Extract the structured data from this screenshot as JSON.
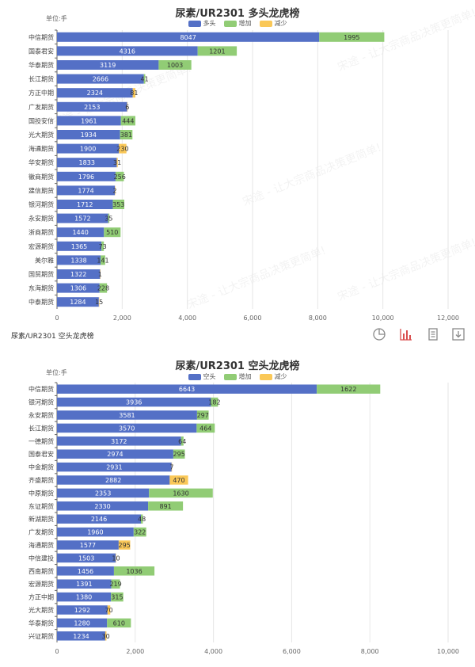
{
  "watermark_text": "宋途 - 让大宗商品决策更简单!",
  "toolbar": {
    "caption": "尿素/UR2301 空头龙虎榜",
    "icons": [
      "pie-chart-icon",
      "bar-chart-icon",
      "data-view-icon",
      "download-icon"
    ]
  },
  "colors": {
    "main": "#5470c6",
    "increase": "#91cc75",
    "decrease": "#fac858"
  },
  "chart_data": [
    {
      "type": "bar",
      "orientation": "horizontal",
      "stacked": true,
      "title": "尿素/UR2301 多头龙虎榜",
      "unit_label": "单位:手",
      "legend": [
        "多头",
        "增加",
        "减少"
      ],
      "xlim": [
        0,
        12000
      ],
      "xticks": [
        "0",
        "2,000",
        "4,000",
        "6,000",
        "8,000",
        "10,000",
        "12,000"
      ],
      "categories": [
        "中信期货",
        "国泰君安",
        "华泰期货",
        "长江期货",
        "方正中期",
        "广发期货",
        "国投安信",
        "光大期货",
        "海通期货",
        "华安期货",
        "徽商期货",
        "建信期货",
        "银河期货",
        "永安期货",
        "浙商期货",
        "宏源期货",
        "美尔雅",
        "国贸期货",
        "东海期货",
        "中泰期货"
      ],
      "series": [
        {
          "name": "多头",
          "values": [
            8047,
            4316,
            3119,
            2666,
            2324,
            2153,
            1961,
            1934,
            1900,
            1833,
            1796,
            1774,
            1712,
            1572,
            1440,
            1365,
            1338,
            1322,
            1306,
            1284
          ]
        },
        {
          "name": "增加",
          "values": [
            1995,
            1201,
            1003,
            41,
            0,
            0,
            444,
            381,
            0,
            0,
            256,
            0,
            353,
            35,
            510,
            73,
            141,
            0,
            228,
            0
          ]
        },
        {
          "name": "减少",
          "values": [
            0,
            0,
            0,
            0,
            81,
            6,
            0,
            0,
            230,
            31,
            0,
            2,
            0,
            0,
            0,
            0,
            0,
            1,
            0,
            15
          ]
        }
      ]
    },
    {
      "type": "bar",
      "orientation": "horizontal",
      "stacked": true,
      "title": "尿素/UR2301 空头龙虎榜",
      "unit_label": "单位:手",
      "legend": [
        "空头",
        "增加",
        "减少"
      ],
      "xlim": [
        0,
        10000
      ],
      "xticks": [
        "0",
        "2,000",
        "4,000",
        "6,000",
        "8,000",
        "10,000"
      ],
      "categories": [
        "中信期货",
        "银河期货",
        "永安期货",
        "长江期货",
        "一德期货",
        "国泰君安",
        "中金期货",
        "齐盛期货",
        "中原期货",
        "东证期货",
        "新湖期货",
        "广发期货",
        "海通期货",
        "中信建投",
        "西南期货",
        "宏源期货",
        "方正中期",
        "光大期货",
        "华泰期货",
        "兴证期货"
      ],
      "series": [
        {
          "name": "空头",
          "values": [
            6643,
            3936,
            3581,
            3570,
            3172,
            2974,
            2931,
            2882,
            2353,
            2330,
            2146,
            1960,
            1577,
            1503,
            1456,
            1391,
            1380,
            1292,
            1280,
            1234
          ]
        },
        {
          "name": "增加",
          "values": [
            1622,
            182,
            297,
            464,
            64,
            295,
            0,
            0,
            1630,
            891,
            48,
            322,
            0,
            0,
            1036,
            219,
            315,
            0,
            610,
            0
          ]
        },
        {
          "name": "减少",
          "values": [
            0,
            0,
            0,
            0,
            0,
            0,
            7,
            470,
            0,
            0,
            0,
            0,
            295,
            10,
            0,
            0,
            0,
            70,
            0,
            30
          ]
        }
      ]
    }
  ]
}
